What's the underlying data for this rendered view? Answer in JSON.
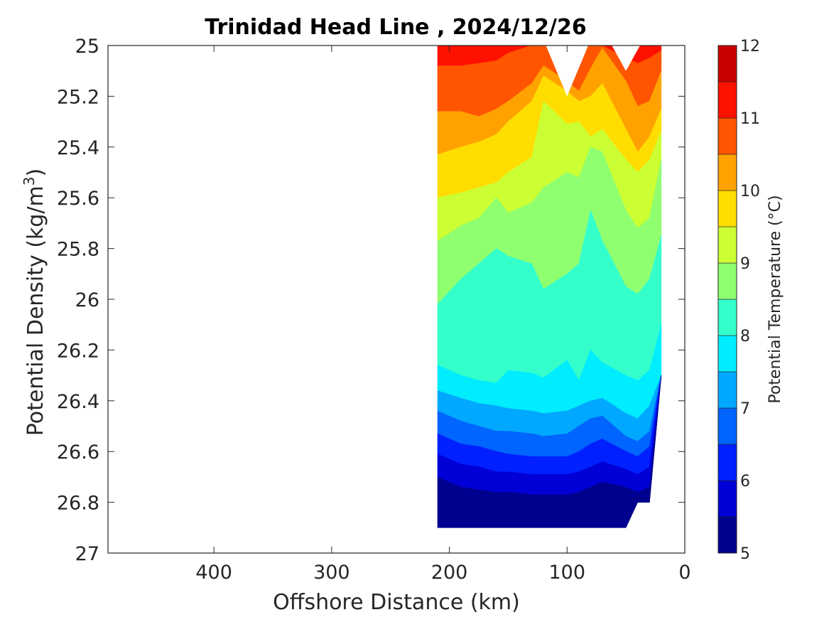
{
  "chart_data": {
    "type": "contourf",
    "title": "Trinidad Head Line , 2024/12/26",
    "xlabel": "Offshore Distance (km)",
    "ylabel": "Potential Density (kg/m",
    "ylabel_superscript": "3",
    "ylabel_suffix": ")",
    "xlim": [
      490,
      0
    ],
    "ylim": [
      25,
      27
    ],
    "x_reversed": true,
    "y_reversed": true,
    "xticks": [
      400,
      300,
      200,
      100,
      0
    ],
    "xtick_labels": [
      "400",
      "300",
      "200",
      "100",
      "0"
    ],
    "yticks": [
      25,
      25.2,
      25.4,
      25.6,
      25.8,
      26,
      26.2,
      26.4,
      26.6,
      26.8,
      27
    ],
    "ytick_labels": [
      "25",
      "25.2",
      "25.4",
      "25.6",
      "25.8",
      "26",
      "26.2",
      "26.4",
      "26.6",
      "26.8",
      "27"
    ],
    "grid": false,
    "colorbar": {
      "label": "Potential Temperature (°C)",
      "range": [
        5,
        12
      ],
      "tick_values": [
        5,
        6,
        7,
        8,
        9,
        10,
        11,
        12
      ],
      "tick_labels": [
        "5",
        "6",
        "7",
        "8",
        "9",
        "10",
        "11",
        "12"
      ],
      "levels": [
        5,
        5.5,
        6,
        6.5,
        7,
        7.5,
        8,
        8.5,
        9,
        9.5,
        10,
        10.5,
        11,
        11.5,
        12
      ],
      "colors": [
        "#00008f",
        "#0000d6",
        "#0020ff",
        "#0064ff",
        "#00a8ff",
        "#00ecff",
        "#34ffcb",
        "#8fff70",
        "#ccff33",
        "#ffdd00",
        "#ffa200",
        "#ff5500",
        "#ff1100",
        "#c80000"
      ]
    },
    "x_stations_km": [
      210,
      190,
      175,
      160,
      150,
      130,
      120,
      100,
      90,
      80,
      70,
      50,
      40,
      30,
      20
    ],
    "depth_limit_density": [
      26.9,
      26.9,
      26.9,
      26.9,
      26.9,
      26.9,
      26.9,
      26.9,
      26.9,
      26.9,
      26.9,
      26.9,
      26.8,
      26.8,
      26.3
    ],
    "isotherms": [
      {
        "temp": 11.5,
        "density": [
          25.08,
          25.08,
          25.07,
          25.06,
          25.03,
          25.0,
          25.0,
          25.0,
          25.0,
          25.0,
          25.0,
          25.05,
          25.07,
          25.05,
          25.02
        ]
      },
      {
        "temp": 11.0,
        "density": [
          25.26,
          25.26,
          25.28,
          25.25,
          25.22,
          25.15,
          25.08,
          25.14,
          25.18,
          25.09,
          25.01,
          25.14,
          25.24,
          25.22,
          25.1
        ]
      },
      {
        "temp": 10.5,
        "density": [
          25.43,
          25.4,
          25.38,
          25.35,
          25.3,
          25.22,
          25.12,
          25.18,
          25.22,
          25.2,
          25.15,
          25.33,
          25.42,
          25.36,
          25.25
        ]
      },
      {
        "temp": 10.0,
        "density": [
          25.6,
          25.58,
          25.56,
          25.54,
          25.5,
          25.44,
          25.22,
          25.31,
          25.3,
          25.36,
          25.33,
          25.45,
          25.5,
          25.45,
          25.34
        ]
      },
      {
        "temp": 9.5,
        "density": [
          25.77,
          25.71,
          25.68,
          25.6,
          25.66,
          25.62,
          25.56,
          25.5,
          25.52,
          25.4,
          25.42,
          25.65,
          25.72,
          25.68,
          25.45
        ]
      },
      {
        "temp": 9.0,
        "density": [
          26.02,
          25.92,
          25.86,
          25.8,
          25.83,
          25.86,
          25.96,
          25.9,
          25.86,
          25.65,
          25.77,
          25.95,
          25.98,
          25.92,
          25.75
        ]
      },
      {
        "temp": 8.5,
        "density": [
          26.26,
          26.3,
          26.32,
          26.33,
          26.28,
          26.29,
          26.31,
          26.24,
          26.32,
          26.2,
          26.25,
          26.3,
          26.32,
          26.28,
          26.1
        ]
      },
      {
        "temp": 8.0,
        "density": [
          26.36,
          26.39,
          26.41,
          26.42,
          26.43,
          26.44,
          26.45,
          26.44,
          26.42,
          26.4,
          26.39,
          26.45,
          26.47,
          26.42,
          26.35
        ]
      },
      {
        "temp": 7.5,
        "density": [
          26.44,
          26.48,
          26.5,
          26.52,
          26.52,
          26.53,
          26.54,
          26.53,
          26.5,
          26.47,
          26.46,
          26.54,
          26.56,
          26.52,
          26.45
        ]
      },
      {
        "temp": 7.0,
        "density": [
          26.53,
          26.57,
          26.58,
          26.6,
          26.61,
          26.62,
          26.62,
          26.62,
          26.6,
          26.57,
          26.55,
          26.6,
          26.62,
          26.58,
          26.5
        ]
      },
      {
        "temp": 6.5,
        "density": [
          26.61,
          26.65,
          26.66,
          26.68,
          26.68,
          26.69,
          26.69,
          26.69,
          26.68,
          26.66,
          26.64,
          26.67,
          26.69,
          26.66,
          26.58
        ]
      },
      {
        "temp": 6.0,
        "density": [
          26.7,
          26.74,
          26.75,
          26.76,
          26.76,
          26.77,
          26.77,
          26.77,
          26.76,
          26.74,
          26.72,
          26.74,
          26.76,
          26.74,
          26.66
        ]
      },
      {
        "temp": 5.5,
        "density": [
          26.8,
          26.82,
          26.83,
          26.83,
          26.84,
          26.84,
          26.84,
          26.83,
          26.83,
          26.82,
          26.81,
          26.82,
          26.84,
          26.82,
          26.76
        ]
      },
      {
        "temp": 5.0,
        "density": [
          26.88,
          26.89,
          26.89,
          26.89,
          26.89,
          26.89,
          26.89,
          26.88,
          26.88,
          26.88,
          26.88,
          26.89,
          26.9,
          26.9,
          26.9
        ]
      }
    ]
  }
}
